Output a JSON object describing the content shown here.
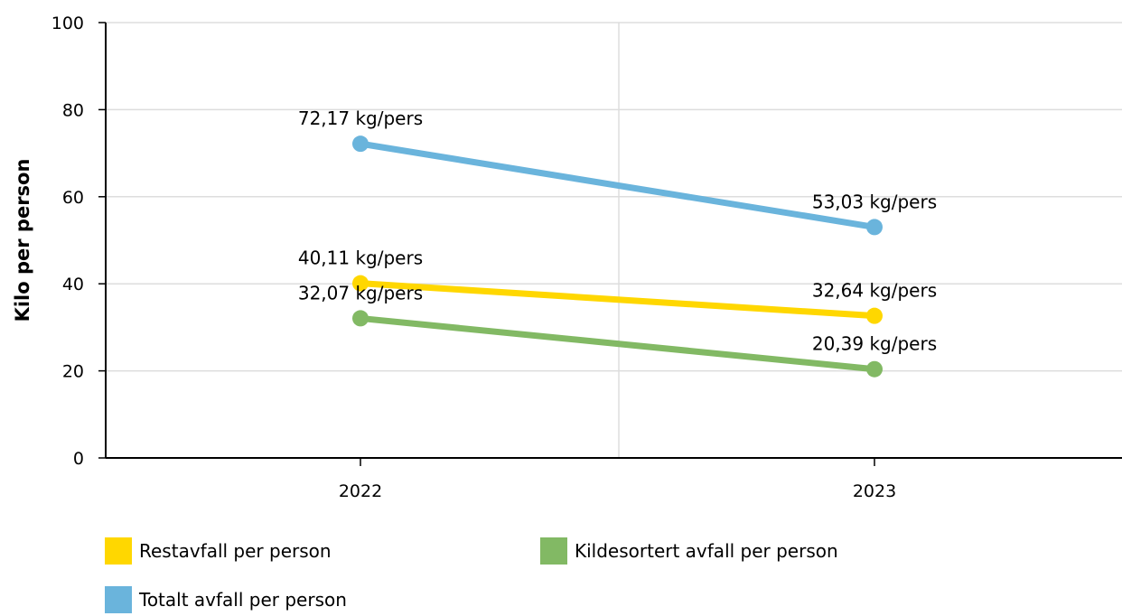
{
  "chart_data": {
    "type": "line",
    "title": "",
    "xlabel": "",
    "ylabel": "Kilo per person",
    "categories": [
      "2022",
      "2023"
    ],
    "ylim": [
      0,
      100
    ],
    "yticks": [
      0,
      20,
      40,
      60,
      80,
      100
    ],
    "grid": true,
    "legend_position": "bottom",
    "series": [
      {
        "name": "Restavfall per person",
        "color": "#FFD700",
        "values": [
          40.11,
          32.64
        ],
        "labels": [
          "40,11 kg/pers",
          "32,64 kg/pers"
        ]
      },
      {
        "name": "Kildesortert avfall per person",
        "color": "#82B964",
        "values": [
          32.07,
          20.39
        ],
        "labels": [
          "32,07 kg/pers",
          "20,39 kg/pers"
        ]
      },
      {
        "name": "Totalt avfall per person",
        "color": "#6AB4DC",
        "values": [
          72.17,
          53.03
        ],
        "labels": [
          "72,17 kg/pers",
          "53,03 kg/pers"
        ]
      }
    ]
  }
}
